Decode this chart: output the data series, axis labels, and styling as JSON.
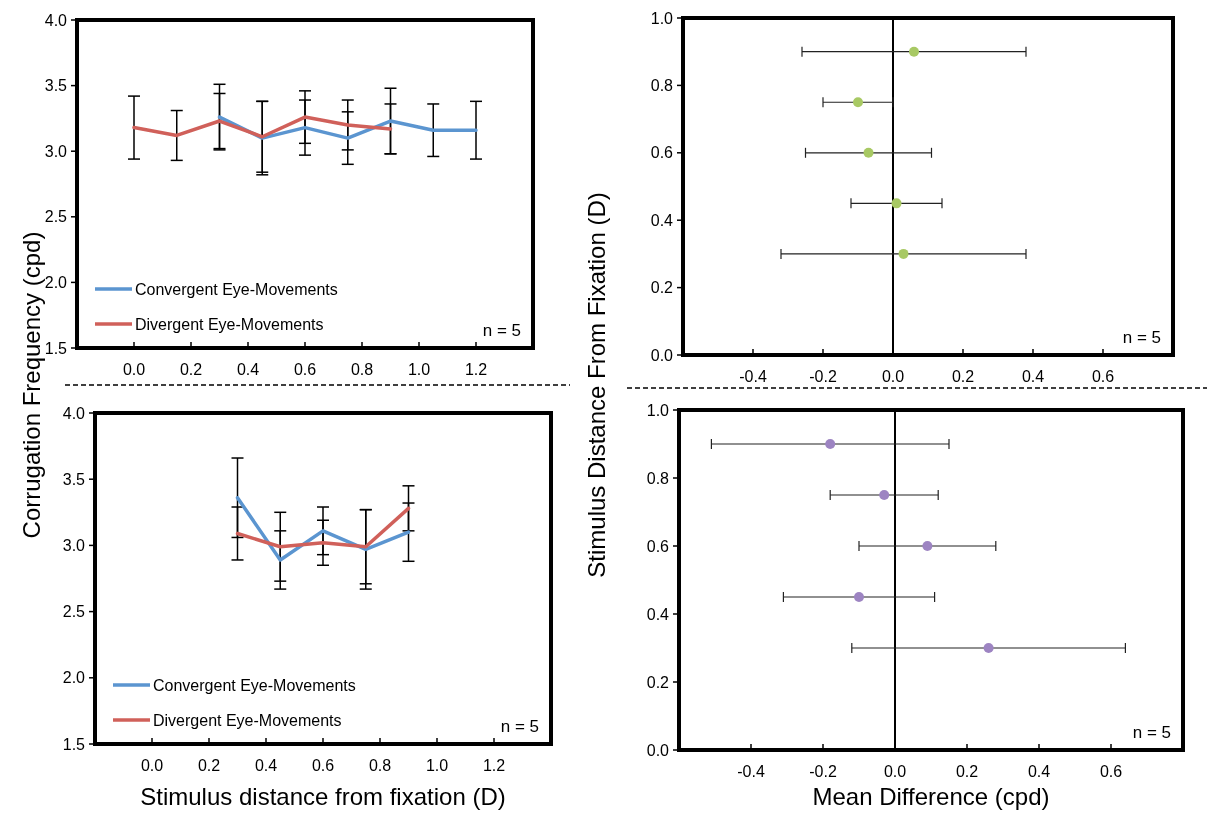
{
  "chart_data": [
    {
      "type": "line",
      "ylabel": "Corrugation Frequency (cpd)",
      "xlim": [
        -0.2,
        1.4
      ],
      "ylim": [
        1.5,
        4.0
      ],
      "xticks": [
        {
          "value": 0,
          "label": "0.0"
        },
        {
          "value": 0.2,
          "label": "0.2"
        },
        {
          "value": 0.4,
          "label": "0.4"
        },
        {
          "value": 0.6,
          "label": "0.6"
        },
        {
          "value": 0.8,
          "label": "0.8"
        },
        {
          "value": 1.0,
          "label": "1.0"
        },
        {
          "value": 1.2,
          "label": "1.2"
        }
      ],
      "yticks": [
        {
          "value": 1.5,
          "label": "1.5"
        },
        {
          "value": 2.0,
          "label": "2.0"
        },
        {
          "value": 2.5,
          "label": "2.5"
        },
        {
          "value": 3.0,
          "label": "3.0"
        },
        {
          "value": 3.5,
          "label": "3.5"
        },
        {
          "value": 4.0,
          "label": "4.0"
        }
      ],
      "series": [
        {
          "name": "Convergent Eye-Movements",
          "color": "#5b95d0",
          "x": [
            0.3,
            0.45,
            0.6,
            0.75,
            0.9,
            1.05,
            1.2
          ],
          "values": [
            3.26,
            3.1,
            3.18,
            3.1,
            3.23,
            3.16,
            3.16
          ],
          "errors": [
            0.25,
            0.28,
            0.21,
            0.2,
            0.25,
            0.2,
            0.22
          ]
        },
        {
          "name": "Divergent Eye-Movements",
          "color": "#d0605a",
          "x": [
            0,
            0.15,
            0.3,
            0.45,
            0.6,
            0.75,
            0.9
          ],
          "values": [
            3.18,
            3.12,
            3.23,
            3.11,
            3.26,
            3.2,
            3.17
          ],
          "errors": [
            0.24,
            0.19,
            0.21,
            0.27,
            0.2,
            0.19,
            0.19
          ]
        }
      ],
      "legend": "bottom left",
      "annotations": [
        "n = 5"
      ]
    },
    {
      "type": "line",
      "xlabel": "Stimulus distance from fixation (D)",
      "xlim": [
        -0.2,
        1.4
      ],
      "ylim": [
        1.5,
        4.0
      ],
      "xticks": [
        {
          "value": 0,
          "label": "0.0"
        },
        {
          "value": 0.2,
          "label": "0.2"
        },
        {
          "value": 0.4,
          "label": "0.4"
        },
        {
          "value": 0.6,
          "label": "0.6"
        },
        {
          "value": 0.8,
          "label": "0.8"
        },
        {
          "value": 1.0,
          "label": "1.0"
        },
        {
          "value": 1.2,
          "label": "1.2"
        }
      ],
      "yticks": [
        {
          "value": 1.5,
          "label": "1.5"
        },
        {
          "value": 2.0,
          "label": "2.0"
        },
        {
          "value": 2.5,
          "label": "2.5"
        },
        {
          "value": 3.0,
          "label": "3.0"
        },
        {
          "value": 3.5,
          "label": "3.5"
        },
        {
          "value": 4.0,
          "label": "4.0"
        }
      ],
      "series": [
        {
          "name": "Convergent Eye-Movements",
          "color": "#5b95d0",
          "x": [
            0.3,
            0.45,
            0.6,
            0.75,
            0.9
          ],
          "values": [
            3.36,
            2.89,
            3.11,
            2.97,
            3.1
          ],
          "errors": [
            0.3,
            0.22,
            0.18,
            0.3,
            0.22
          ]
        },
        {
          "name": "Divergent Eye-Movements",
          "color": "#d0605a",
          "x": [
            0.3,
            0.45,
            0.6,
            0.75,
            0.9
          ],
          "values": [
            3.09,
            2.99,
            3.02,
            2.99,
            3.28
          ],
          "errors": [
            0.2,
            0.26,
            0.17,
            0.28,
            0.17
          ]
        }
      ],
      "legend": "bottom left",
      "annotations": [
        "n = 5"
      ]
    },
    {
      "type": "scatter",
      "ylabel": "Stimulus Distance From Fixation (D)",
      "xlim": [
        -0.6,
        0.8
      ],
      "ylim": [
        0,
        1.0
      ],
      "xticks": [
        {
          "value": -0.4,
          "label": "-0.4"
        },
        {
          "value": -0.2,
          "label": "-0.2"
        },
        {
          "value": 0,
          "label": "0.0"
        },
        {
          "value": 0.2,
          "label": "0.2"
        },
        {
          "value": 0.4,
          "label": "0.4"
        },
        {
          "value": 0.6,
          "label": "0.6"
        }
      ],
      "yticks": [
        {
          "value": 0,
          "label": "0.0"
        },
        {
          "value": 0.2,
          "label": "0.2"
        },
        {
          "value": 0.4,
          "label": "0.4"
        },
        {
          "value": 0.6,
          "label": "0.6"
        },
        {
          "value": 0.8,
          "label": "0.8"
        },
        {
          "value": 1.0,
          "label": "1.0"
        }
      ],
      "series": [
        {
          "color": "#a8c964",
          "x": [
            0.06,
            -0.1,
            -0.07,
            0.01,
            0.03
          ],
          "values": [
            0.9,
            0.75,
            0.6,
            0.45,
            0.3
          ],
          "xerrors": [
            0.32,
            0.1,
            0.18,
            0.13,
            0.35
          ]
        }
      ],
      "marker": "circle",
      "ref_lines": [
        {
          "axis": "x",
          "value": 0,
          "color": "#000000"
        }
      ],
      "annotations": [
        "n = 5"
      ]
    },
    {
      "type": "scatter",
      "xlabel": "Mean Difference (cpd)",
      "xlim": [
        -0.6,
        0.8
      ],
      "ylim": [
        0,
        1.0
      ],
      "xticks": [
        {
          "value": -0.4,
          "label": "-0.4"
        },
        {
          "value": -0.2,
          "label": "-0.2"
        },
        {
          "value": 0,
          "label": "0.0"
        },
        {
          "value": 0.2,
          "label": "0.2"
        },
        {
          "value": 0.4,
          "label": "0.4"
        },
        {
          "value": 0.6,
          "label": "0.6"
        }
      ],
      "yticks": [
        {
          "value": 0,
          "label": "0.0"
        },
        {
          "value": 0.2,
          "label": "0.2"
        },
        {
          "value": 0.4,
          "label": "0.4"
        },
        {
          "value": 0.6,
          "label": "0.6"
        },
        {
          "value": 0.8,
          "label": "0.8"
        },
        {
          "value": 1.0,
          "label": "1.0"
        }
      ],
      "series": [
        {
          "color": "#9d84c2",
          "x": [
            -0.18,
            -0.03,
            0.09,
            -0.1,
            0.26
          ],
          "values": [
            0.9,
            0.75,
            0.6,
            0.45,
            0.3
          ],
          "xerrors": [
            0.33,
            0.15,
            0.19,
            0.21,
            0.38
          ]
        }
      ],
      "marker": "circle",
      "ref_lines": [
        {
          "axis": "x",
          "value": 0,
          "color": "#000000"
        }
      ],
      "annotations": [
        "n = 5"
      ]
    }
  ]
}
